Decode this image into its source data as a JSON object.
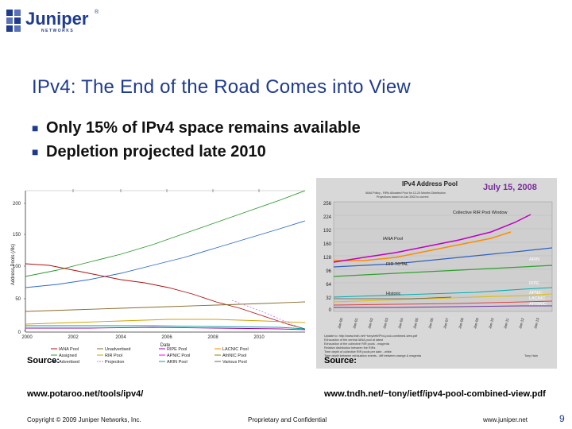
{
  "brand": {
    "name": "Juniper",
    "subtitle": "NETWORKS"
  },
  "slide": {
    "title": "IPv4: The End of the Road Comes into View",
    "bullets": [
      "Only 15% of IPv4 space remains available",
      "Depletion projected late 2010"
    ]
  },
  "colors": {
    "title": "#1f3b8f",
    "brand": "#1f3b8f"
  },
  "chart_left": {
    "ylabel": "Address Pools (/8s)",
    "xlabel": "Date",
    "yticks": [
      "0",
      "50",
      "100",
      "150",
      "200"
    ],
    "xticks": [
      "2000",
      "2002",
      "2004",
      "2006",
      "2008",
      "2010"
    ],
    "legend": [
      "IANA Pool",
      "Unadvertised",
      "RIPE Pool",
      "LACNIC Pool",
      "Assigned",
      "RIR Pool",
      "APNIC Pool",
      "AfriNIC Pool",
      "Advertised",
      "Projection",
      "ARIN Pool",
      "Various Pool"
    ]
  },
  "chart_right": {
    "title": "IPv4 Address Pool",
    "date": "July 15, 2008",
    "subtitle_lines": [
      "IANA Policy - RIRs Allocated Pool for 12-24 Months Distribution",
      "Projections based on Jan 2002 to current"
    ],
    "yticks": [
      "256",
      "224",
      "192",
      "160",
      "128",
      "96",
      "64",
      "32",
      "0"
    ],
    "labels": {
      "collective": "Collective RIR Pool Window",
      "iana": "IANA Pool",
      "rir_total": "RIR TOTAL",
      "historic": "Historic",
      "arin": "ARIN",
      "ripe": "RIPE",
      "apnic": "APNIC",
      "lacnic": "LACNIC",
      "afrinic": "AFRINIC"
    },
    "xticks": [
      "Jan-00",
      "Jan-01",
      "Jan-02",
      "Jan-03",
      "Jan-04",
      "Jan-05",
      "Jan-06",
      "Jan-07",
      "Jan-08",
      "Jan-09",
      "Jan-10",
      "Jan-11",
      "Jan-12",
      "Jan-13"
    ],
    "notes": [
      "Update to: http://www.tndh.net/~tony/ietf/IPv4-pool-combined-view.pdf",
      "Exhaustion of the central IANA pool at latest",
      "Exhaustion of the collective RIR pools - magenta",
      "Relative distribution between the RIRs",
      "Time depth of collective RIR pools per date - white",
      "Time depth between exhaustion events - diff between orange & magenta"
    ],
    "signature": "Tony Hain"
  },
  "sources": {
    "left_label": "Source:",
    "left_url": "www.potaroo.net/tools/ipv4/",
    "right_label": "Source:",
    "right_url": "www.tndh.net/~tony/ietf/ipv4-pool-combined-view.pdf"
  },
  "footer": {
    "copyright": "Copyright © 2009 Juniper Networks, Inc.",
    "confidential": "Proprietary and Confidential",
    "url": "www.juniper.net",
    "page": "9"
  }
}
